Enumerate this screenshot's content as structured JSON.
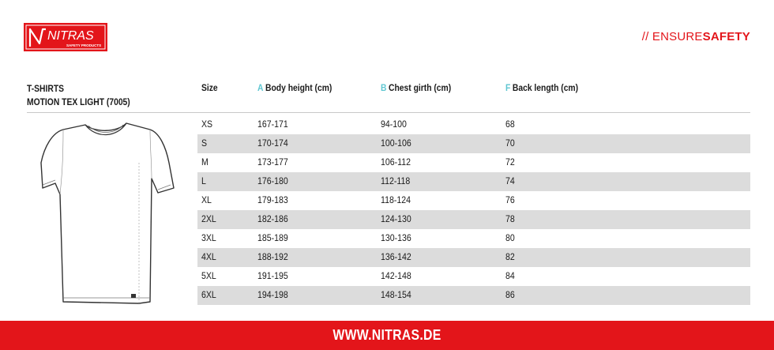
{
  "brand": {
    "name": "NITRAS",
    "sub": "SAFETY PRODUCTS",
    "accent": "#e3151a",
    "letter_color": "#5ec6d1"
  },
  "tagline": {
    "prefix": "// ENSURE",
    "suffix": "SAFETY"
  },
  "product": {
    "line1": "T-SHIRTS",
    "line2": "MOTION TEX LIGHT (7005)"
  },
  "table": {
    "headers": [
      {
        "letter": "",
        "label": "Size"
      },
      {
        "letter": "A",
        "label": "Body height (cm)"
      },
      {
        "letter": "B",
        "label": "Chest girth (cm)"
      },
      {
        "letter": "F",
        "label": "Back length (cm)"
      }
    ],
    "rows": [
      [
        "XS",
        "167-171",
        "94-100",
        "68"
      ],
      [
        "S",
        "170-174",
        "100-106",
        "70"
      ],
      [
        "M",
        "173-177",
        "106-112",
        "72"
      ],
      [
        "L",
        "176-180",
        "112-118",
        "74"
      ],
      [
        "XL",
        "179-183",
        "118-124",
        "76"
      ],
      [
        "2XL",
        "182-186",
        "124-130",
        "78"
      ],
      [
        "3XL",
        "185-189",
        "130-136",
        "80"
      ],
      [
        "4XL",
        "188-192",
        "136-142",
        "82"
      ],
      [
        "5XL",
        "191-195",
        "142-148",
        "84"
      ],
      [
        "6XL",
        "194-198",
        "148-154",
        "86"
      ]
    ]
  },
  "footer": {
    "url": "WWW.NITRAS.DE"
  }
}
